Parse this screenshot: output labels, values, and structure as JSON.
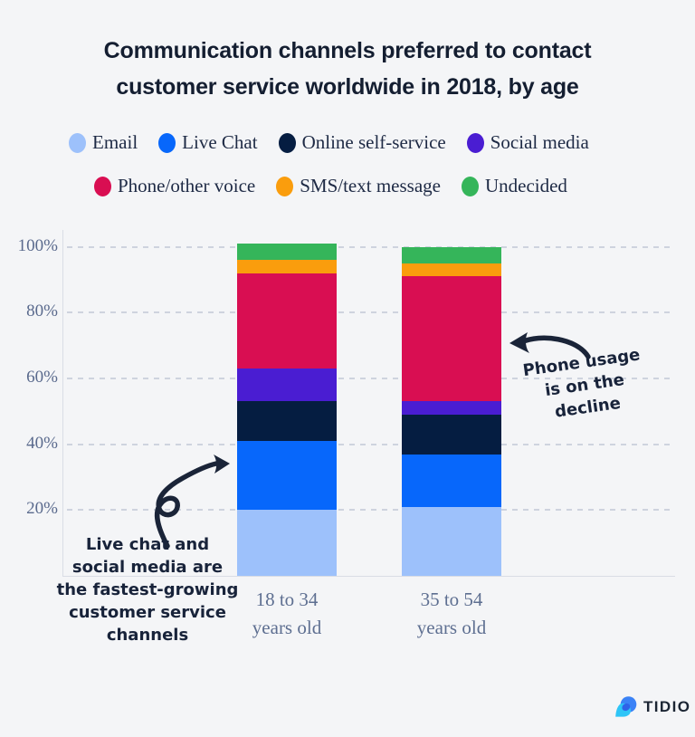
{
  "title": {
    "line1": "Communication channels preferred to contact",
    "line2": "customer service worldwide in 2018, by age"
  },
  "legend": {
    "row1": [
      "Email",
      "Live Chat",
      "Online self-service",
      "Social media"
    ],
    "row2": [
      "Phone/other voice",
      "SMS/text message",
      "Undecided"
    ]
  },
  "chart_data": {
    "type": "bar",
    "stacked": true,
    "title": "Communication channels preferred to contact customer service worldwide in 2018, by age",
    "categories": [
      [
        "18 to 34",
        "years old"
      ],
      [
        "35 to 54",
        "years old"
      ]
    ],
    "series": [
      {
        "name": "Email",
        "color": "#9dc1fb",
        "values": [
          20,
          21
        ]
      },
      {
        "name": "Live Chat",
        "color": "#0767fb",
        "values": [
          21,
          16
        ]
      },
      {
        "name": "Online self-service",
        "color": "#051d41",
        "values": [
          12,
          12
        ]
      },
      {
        "name": "Social media",
        "color": "#4a1dd2",
        "values": [
          10,
          4
        ]
      },
      {
        "name": "Phone/other voice",
        "color": "#d90e52",
        "values": [
          29,
          38
        ]
      },
      {
        "name": "SMS/text message",
        "color": "#fa9d0d",
        "values": [
          4,
          4
        ]
      },
      {
        "name": "Undecided",
        "color": "#35b55a",
        "values": [
          5,
          5
        ]
      }
    ],
    "yticks": [
      {
        "label": "20%",
        "value": 20
      },
      {
        "label": "40%",
        "value": 40
      },
      {
        "label": "60%",
        "value": 60
      },
      {
        "label": "80%",
        "value": 80
      },
      {
        "label": "100%",
        "value": 100
      }
    ],
    "ylim": [
      0,
      100
    ],
    "grid": "dashed-horizontal",
    "legend_position": "top"
  },
  "annotations": {
    "left": {
      "lines": [
        "Live chat and",
        "social media are",
        "the fastest-growing",
        "customer service",
        "channels"
      ]
    },
    "right": {
      "lines": [
        "Phone usage",
        "is on the",
        "decline"
      ]
    }
  },
  "colors": {
    "background": "#f4f5f7",
    "title_text": "#141e31",
    "legend_text": "#1e2a45",
    "tick_text": "#5a6a8d",
    "annotation_ink": "#18233a",
    "gridline": "#c7cdd9",
    "axis_line": "#d9dde5"
  },
  "brand": {
    "name": "TIDIO"
  }
}
